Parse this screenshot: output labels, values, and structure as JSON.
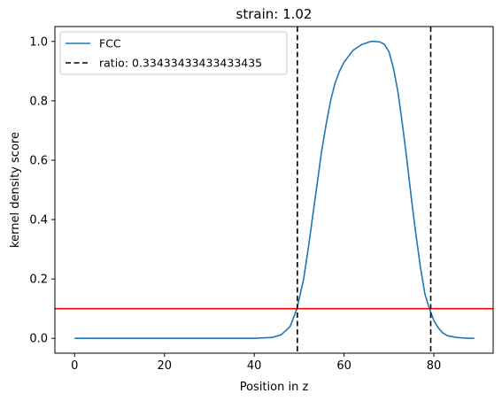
{
  "chart_data": {
    "type": "line",
    "title": "strain: 1.02",
    "xlabel": "Position in z",
    "ylabel": "kernel density score",
    "xlim": [
      -4.4,
      93.2
    ],
    "ylim": [
      -0.05,
      1.05
    ],
    "xticks": [
      0,
      20,
      40,
      60,
      80
    ],
    "yticks": [
      0.0,
      0.2,
      0.4,
      0.6,
      0.8,
      1.0
    ],
    "xtick_labels": [
      "0",
      "20",
      "40",
      "60",
      "80"
    ],
    "ytick_labels": [
      "0.0",
      "0.2",
      "0.4",
      "0.6",
      "0.8",
      "1.0"
    ],
    "grid": false,
    "legend_position": "top-left",
    "series": [
      {
        "name": "FCC",
        "color": "#1f77b4",
        "style": "solid",
        "x": [
          0,
          10,
          20,
          30,
          40,
          44,
          46,
          48,
          49.5,
          51,
          52,
          53,
          54,
          55,
          56,
          57,
          58,
          59,
          60,
          61,
          62,
          63,
          64,
          65,
          66,
          67,
          68,
          69,
          70,
          71,
          72,
          73,
          74,
          75,
          76,
          77,
          78,
          79,
          80,
          81,
          82,
          83,
          85,
          87,
          89
        ],
        "y": [
          0,
          0,
          0,
          0,
          0,
          0.003,
          0.012,
          0.04,
          0.1,
          0.2,
          0.3,
          0.41,
          0.52,
          0.63,
          0.72,
          0.8,
          0.86,
          0.9,
          0.93,
          0.95,
          0.97,
          0.98,
          0.99,
          0.995,
          1.0,
          1.0,
          0.998,
          0.99,
          0.965,
          0.91,
          0.83,
          0.72,
          0.6,
          0.47,
          0.35,
          0.24,
          0.15,
          0.1,
          0.06,
          0.035,
          0.018,
          0.009,
          0.003,
          0.001,
          0.0
        ]
      }
    ],
    "vlines": [
      {
        "name": "ratio: 0.33433433433433435",
        "x": 49.6,
        "color": "#000000",
        "style": "dashed"
      },
      {
        "x": 79.3,
        "color": "#000000",
        "style": "dashed"
      }
    ],
    "hlines": [
      {
        "y": 0.1,
        "color": "#ff0000",
        "style": "solid"
      }
    ]
  }
}
